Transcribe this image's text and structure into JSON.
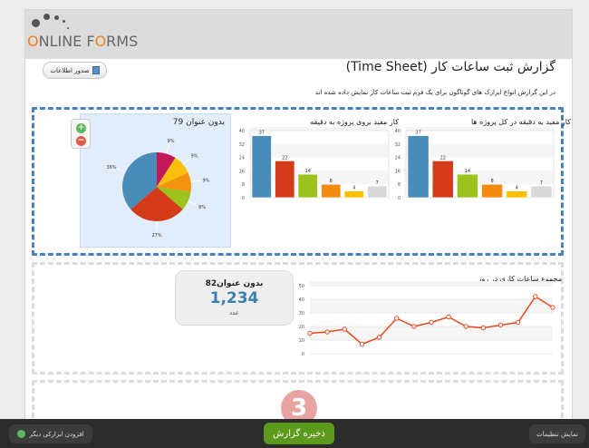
{
  "logo": {
    "text_prefix": "O",
    "text_mid": "NLINE F",
    "text_o": "O",
    "text_suffix": "RMS"
  },
  "header": {
    "title": "گزارش ثبت ساعات کار (Time Sheet)",
    "description": "در این گزارش انواع ابزارک های گوناگون برای یک فرم ثبت ساعات کار نمایش داده شده اند",
    "export_label": "صدور اطلاعات"
  },
  "pie": {
    "title": "بدون عنوان 79",
    "zoom_in": "+",
    "zoom_out": "−"
  },
  "bar_right": {
    "title": "کار مفید به دقیقه در کل پروژه ها"
  },
  "bar_left": {
    "title": "کار مفید بروی پروژه به دقیقه"
  },
  "line": {
    "title": "مجموع ساعات کاری در روز"
  },
  "kpi": {
    "title": "بدون عنوان82",
    "value": "1,234",
    "unit": "عدد"
  },
  "step": {
    "number": "3"
  },
  "footer": {
    "add_widget": "افزودن ابزارکی دیگر",
    "save": "ذخیره گزارش",
    "settings": "نمایش تنظیمات"
  },
  "chart_data": [
    {
      "type": "bar",
      "title": "کار مفید به دقیقه در کل پروژه ها",
      "values": [
        37,
        22,
        14,
        8,
        4,
        7
      ],
      "labels": [
        "37",
        "22",
        "14",
        "8",
        "4",
        "7"
      ],
      "colors": [
        "#4a8cb8",
        "#d43b1b",
        "#9cc21d",
        "#f28c0f",
        "#f8c000",
        "#d9d9d9"
      ],
      "yticks": [
        "0",
        "8",
        "16",
        "24",
        "32",
        "40"
      ],
      "ylim": [
        0,
        40
      ]
    },
    {
      "type": "bar",
      "title": "کار مفید بروی پروژه به دقیقه",
      "values": [
        37,
        22,
        14,
        8,
        4,
        7
      ],
      "labels": [
        "37",
        "22",
        "14",
        "8",
        "4",
        "7"
      ],
      "colors": [
        "#4a8cb8",
        "#d43b1b",
        "#9cc21d",
        "#f28c0f",
        "#f8c000",
        "#d9d9d9"
      ],
      "yticks": [
        "0",
        "8",
        "16",
        "24",
        "32",
        "40"
      ],
      "ylim": [
        0,
        40
      ]
    },
    {
      "type": "pie",
      "title": "بدون عنوان 79",
      "values": [
        9,
        9,
        9,
        9,
        27,
        36
      ],
      "labels": [
        "9%",
        "9%",
        "9%",
        "9%",
        "27%",
        "36%"
      ],
      "colors": [
        "#c4185a",
        "#f8c00c",
        "#f3930f",
        "#9cc21d",
        "#d43b1b",
        "#4a8cb8"
      ]
    },
    {
      "type": "line",
      "title": "مجموع ساعات کاری در روز",
      "values": [
        15,
        16,
        18,
        7,
        12,
        26,
        20,
        23,
        27,
        20,
        19,
        21,
        23,
        42,
        34
      ],
      "yticks": [
        "0",
        "10",
        "20",
        "30",
        "40",
        "50"
      ],
      "ylim": [
        0,
        50
      ],
      "color": "#e8471c"
    }
  ]
}
